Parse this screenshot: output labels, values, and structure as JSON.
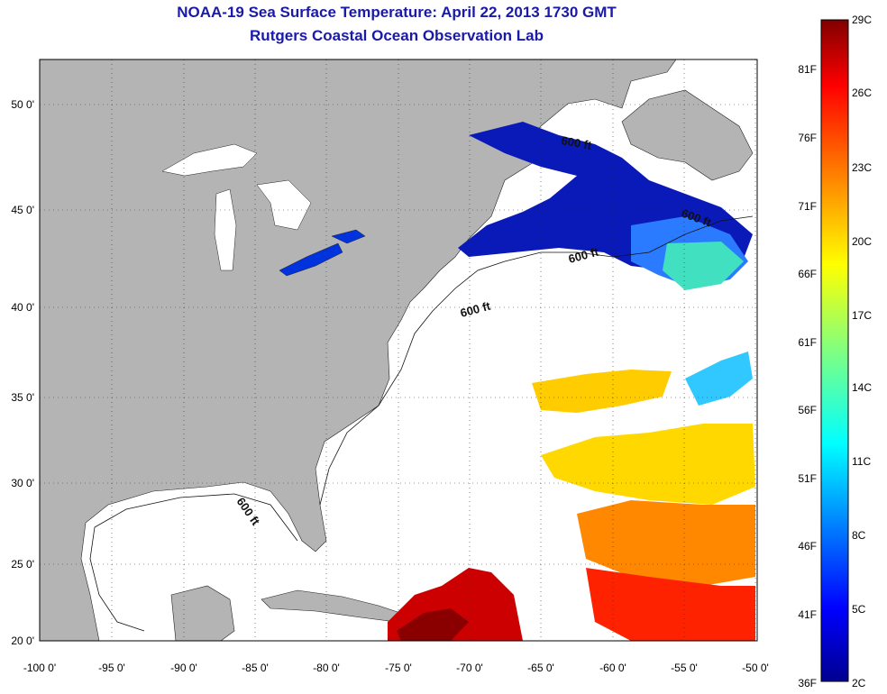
{
  "title": "NOAA-19 Sea Surface Temperature:  April 22, 2013 1730 GMT",
  "subtitle": "Rutgers Coastal Ocean Observation Lab",
  "lat_ticks": [
    "50 0'",
    "45 0'",
    "40 0'",
    "35 0'",
    "30 0'",
    "25 0'",
    "20 0'"
  ],
  "lon_ticks": [
    "-100 0'",
    "-95 0'",
    "-90 0'",
    "-85 0'",
    "-80 0'",
    "-75 0'",
    "-70 0'",
    "-65 0'",
    "-60 0'",
    "-55 0'",
    "-50 0'"
  ],
  "isobath_label": "600 ft",
  "colorbar": {
    "f_labels": [
      "81F",
      "76F",
      "71F",
      "66F",
      "61F",
      "56F",
      "51F",
      "46F",
      "41F",
      "36F"
    ],
    "c_labels": [
      "29C",
      "26C",
      "23C",
      "20C",
      "17C",
      "14C",
      "11C",
      "8C",
      "5C",
      "2C"
    ],
    "colors": [
      "#00008f",
      "#0000ff",
      "#0080ff",
      "#00ffff",
      "#80ff80",
      "#ffff00",
      "#ff8000",
      "#ff0000",
      "#800000"
    ]
  },
  "colors": {
    "land": "#b4b4b4",
    "no_data": "#ffffff",
    "title": "#1a1aa8"
  }
}
